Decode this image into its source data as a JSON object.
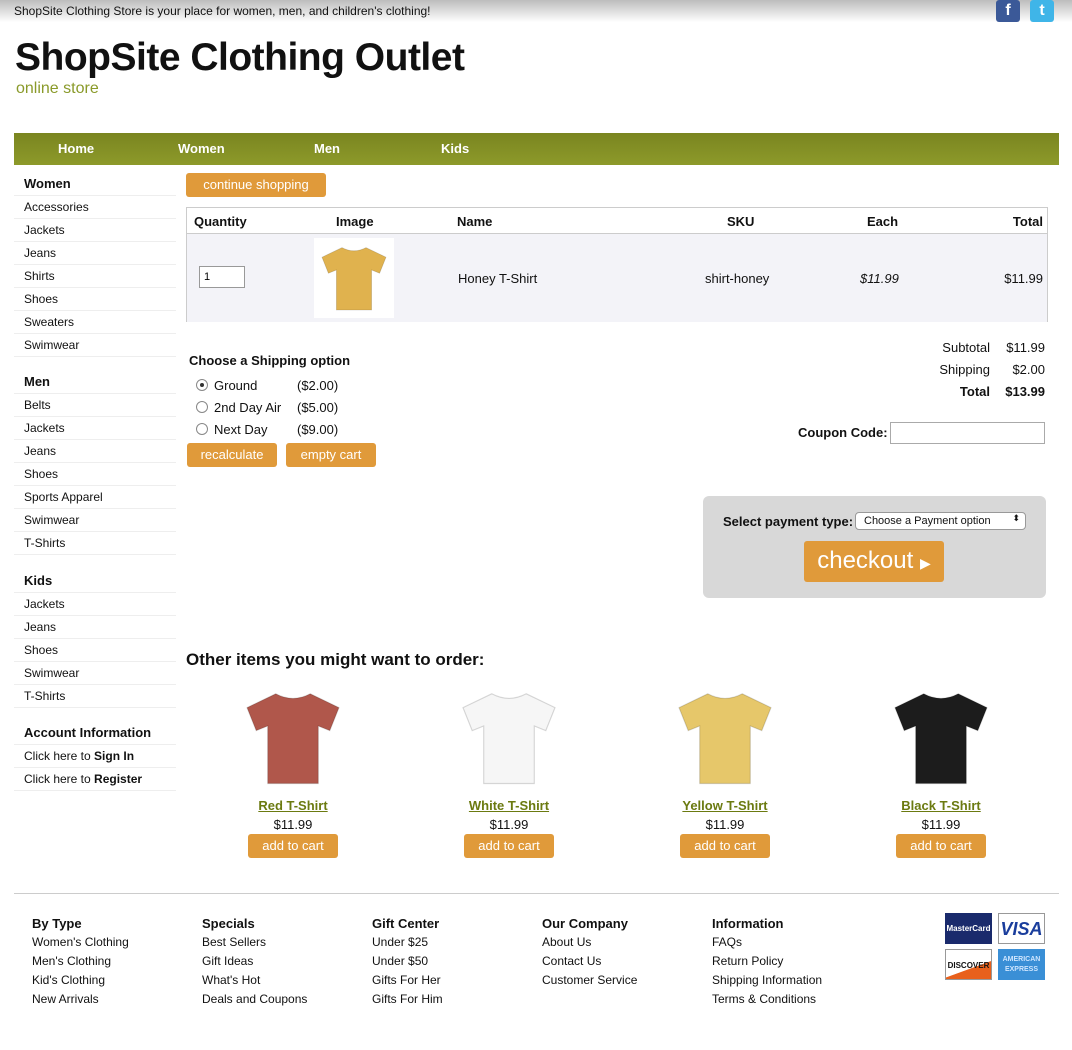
{
  "header": {
    "tagline": "ShopSite Clothing Store is your place for women, men, and children's clothing!",
    "title": "ShopSite Clothing Outlet",
    "subtitle": "online store",
    "social": [
      "f",
      "t"
    ]
  },
  "nav": [
    "Home",
    "Women",
    "Men",
    "Kids"
  ],
  "sidebar": {
    "women": {
      "title": "Women",
      "items": [
        "Accessories",
        "Jackets",
        "Jeans",
        "Shirts",
        "Shoes",
        "Sweaters",
        "Swimwear"
      ]
    },
    "men": {
      "title": "Men",
      "items": [
        "Belts",
        "Jackets",
        "Jeans",
        "Shoes",
        "Sports Apparel",
        "Swimwear",
        "T-Shirts"
      ]
    },
    "kids": {
      "title": "Kids",
      "items": [
        "Jackets",
        "Jeans",
        "Shoes",
        "Swimwear",
        "T-Shirts"
      ]
    },
    "account": {
      "title": "Account Information",
      "signin_pre": "Click here to ",
      "signin": "Sign In",
      "register_pre": "Click here to ",
      "register": "Register"
    }
  },
  "cart": {
    "continue": "continue shopping",
    "headers": [
      "Quantity",
      "Image",
      "Name",
      "SKU",
      "Each",
      "Total"
    ],
    "item": {
      "qty": "1",
      "name": "Honey T-Shirt",
      "sku": "shirt-honey",
      "each": "$11.99",
      "total": "$11.99",
      "color": "#e0b24e"
    }
  },
  "shipping": {
    "title": "Choose a Shipping option",
    "options": [
      {
        "label": "Ground",
        "price": "($2.00)",
        "selected": true
      },
      {
        "label": "2nd Day Air",
        "price": "($5.00)",
        "selected": false
      },
      {
        "label": "Next Day",
        "price": "($9.00)",
        "selected": false
      }
    ],
    "recalculate": "recalculate",
    "empty": "empty cart"
  },
  "totals": {
    "subtotal_label": "Subtotal",
    "subtotal": "$11.99",
    "shipping_label": "Shipping",
    "shipping": "$2.00",
    "total_label": "Total",
    "total": "$13.99"
  },
  "coupon": {
    "label": "Coupon Code:",
    "value": ""
  },
  "payment": {
    "label": "Select payment type:",
    "selected": "Choose a Payment option",
    "checkout": "checkout"
  },
  "other": {
    "title": "Other items you might want to order:",
    "add": "add to cart",
    "items": [
      {
        "name": "Red T-Shirt",
        "price": "$11.99",
        "color": "#b0574b"
      },
      {
        "name": "White T-Shirt",
        "price": "$11.99",
        "color": "#f6f6f6"
      },
      {
        "name": "Yellow T-Shirt",
        "price": "$11.99",
        "color": "#e6c76a"
      },
      {
        "name": "Black T-Shirt",
        "price": "$11.99",
        "color": "#1c1c1c"
      }
    ]
  },
  "footer": [
    {
      "title": "By Type",
      "items": [
        "Women's Clothing",
        "Men's Clothing",
        "Kid's Clothing",
        "New Arrivals"
      ]
    },
    {
      "title": "Specials",
      "items": [
        "Best Sellers",
        "Gift Ideas",
        "What's Hot",
        "Deals and Coupons"
      ]
    },
    {
      "title": "Gift Center",
      "items": [
        "Under $25",
        "Under $50",
        "Gifts For Her",
        "Gifts For Him"
      ]
    },
    {
      "title": "Our Company",
      "items": [
        "About Us",
        "Contact Us",
        "Customer Service"
      ]
    },
    {
      "title": "Information",
      "items": [
        "FAQs",
        "Return Policy",
        "Shipping Information",
        "Terms & Conditions"
      ]
    }
  ],
  "cards": [
    "MasterCard",
    "VISA",
    "DISCOVER",
    "AMERICAN EXPRESS"
  ],
  "colors": {
    "accent": "#e09a3a",
    "nav": "#7d8a22"
  }
}
